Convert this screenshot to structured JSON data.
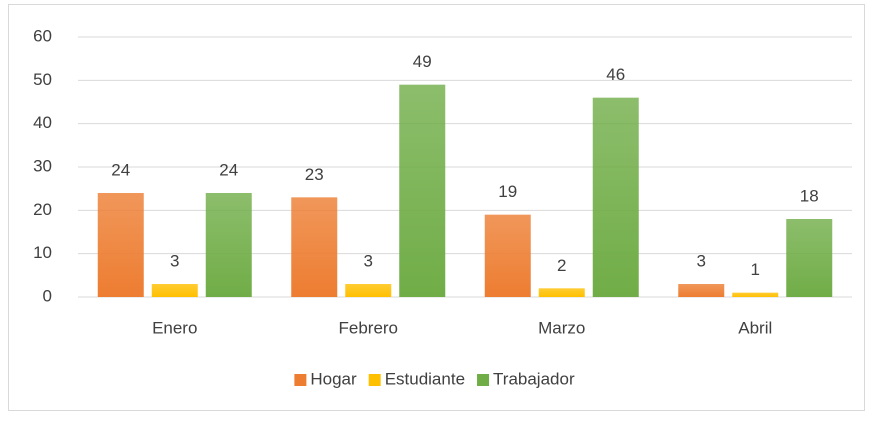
{
  "chart_data": {
    "type": "bar",
    "categories": [
      "Enero",
      "Febrero",
      "Marzo",
      "Abril"
    ],
    "series": [
      {
        "name": "Hogar",
        "color": "#ed7d31",
        "values": [
          24,
          23,
          19,
          3
        ]
      },
      {
        "name": "Estudiante",
        "color": "#ffc000",
        "values": [
          3,
          3,
          2,
          1
        ]
      },
      {
        "name": "Trabajador",
        "color": "#70ad47",
        "values": [
          24,
          49,
          46,
          18
        ]
      }
    ],
    "ylim": [
      0,
      60
    ],
    "yticks": [
      0,
      10,
      20,
      30,
      40,
      50,
      60
    ],
    "grid": true,
    "legend": "bottom"
  }
}
